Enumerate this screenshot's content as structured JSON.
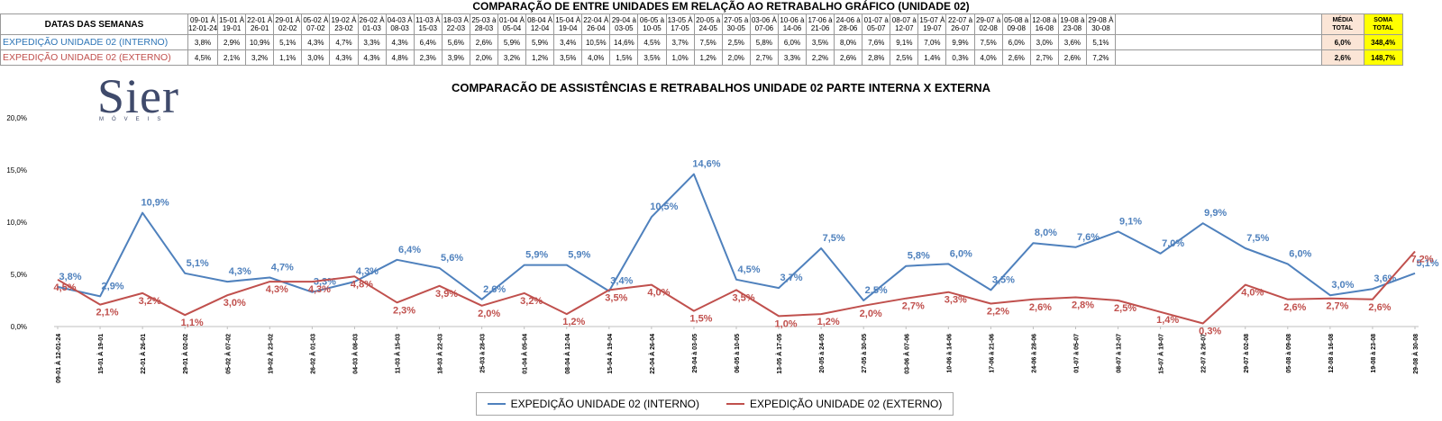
{
  "header": {
    "title": "COMPARAÇÃO DE ENTRE UNIDADES EM RELAÇÃO AO RETRABALHO GRÁFICO (UNIDADE 02)"
  },
  "table": {
    "header_label": "DATAS DAS SEMANAS",
    "weeks": [
      [
        "09-01 À",
        "12-01-24"
      ],
      [
        "15-01 À",
        "19-01"
      ],
      [
        "22-01 À",
        "26-01"
      ],
      [
        "29-01 À",
        "02-02"
      ],
      [
        "05-02 À",
        "07-02"
      ],
      [
        "19-02 À",
        "23-02"
      ],
      [
        "26-02 À",
        "01-03"
      ],
      [
        "04-03 À",
        "08-03"
      ],
      [
        "11-03 À",
        "15-03"
      ],
      [
        "18-03 À",
        "22-03"
      ],
      [
        "25-03 à",
        "28-03"
      ],
      [
        "01-04 À",
        "05-04"
      ],
      [
        "08-04 À",
        "12-04"
      ],
      [
        "15-04 À",
        "19-04"
      ],
      [
        "22-04 À",
        "26-04"
      ],
      [
        "29-04 à",
        "03-05"
      ],
      [
        "06-05 à",
        "10-05"
      ],
      [
        "13-05 À",
        "17-05"
      ],
      [
        "20-05 à",
        "24-05"
      ],
      [
        "27-05 à",
        "30-05"
      ],
      [
        "03-06 À",
        "07-06"
      ],
      [
        "10-06 à",
        "14-06"
      ],
      [
        "17-06 à",
        "21-06"
      ],
      [
        "24-06 à",
        "28-06"
      ],
      [
        "01-07 à",
        "05-07"
      ],
      [
        "08-07 à",
        "12-07"
      ],
      [
        "15-07 À",
        "19-07"
      ],
      [
        "22-07 à",
        "26-07"
      ],
      [
        "29-07 à",
        "02-08"
      ],
      [
        "05-08 à",
        "09-08"
      ],
      [
        "12-08 à",
        "16-08"
      ],
      [
        "19-08 à",
        "23-08"
      ],
      [
        "29-08 À",
        "30-08"
      ]
    ],
    "media_header": [
      "MÉDIA",
      "TOTAL"
    ],
    "soma_header": [
      "SOMA",
      "TOTAL"
    ],
    "rows": [
      {
        "label": "EXPEDIÇÃO UNIDADE 02 (INTERNO)",
        "values": [
          "3,8%",
          "2,9%",
          "10,9%",
          "5,1%",
          "4,3%",
          "4,7%",
          "3,3%",
          "4,3%",
          "6,4%",
          "5,6%",
          "2,6%",
          "5,9%",
          "5,9%",
          "3,4%",
          "10,5%",
          "14,6%",
          "4,5%",
          "3,7%",
          "7,5%",
          "2,5%",
          "5,8%",
          "6,0%",
          "3,5%",
          "8,0%",
          "7,6%",
          "9,1%",
          "7,0%",
          "9,9%",
          "7,5%",
          "6,0%",
          "3,0%",
          "3,6%",
          "5,1%"
        ],
        "media": "6,0%",
        "soma": "348,4%"
      },
      {
        "label": "EXPEDIÇÃO UNIDADE 02 (EXTERNO)",
        "values": [
          "4,5%",
          "2,1%",
          "3,2%",
          "1,1%",
          "3,0%",
          "4,3%",
          "4,3%",
          "4,8%",
          "2,3%",
          "3,9%",
          "2,0%",
          "3,2%",
          "1,2%",
          "3,5%",
          "4,0%",
          "1,5%",
          "3,5%",
          "1,0%",
          "1,2%",
          "2,0%",
          "2,7%",
          "3,3%",
          "2,2%",
          "2,6%",
          "2,8%",
          "2,5%",
          "1,4%",
          "0,3%",
          "4,0%",
          "2,6%",
          "2,7%",
          "2,6%",
          "7,2%"
        ],
        "media": "2,6%",
        "soma": "148,7%"
      }
    ]
  },
  "logo": {
    "text": "Sier",
    "sub": "MÓVEIS"
  },
  "chart_data": {
    "type": "line",
    "title": "COMPARACÃO DE ASSISTÊNCIAS E RETRABALHOS UNIDADE 02 PARTE INTERNA X EXTERNA",
    "categories": [
      "09-01 À 12-01-24",
      "15-01 À 19-01",
      "22-01 À 26-01",
      "29-01 À 02-02",
      "05-02 À 07-02",
      "19-02 À 23-02",
      "26-02 À 01-03",
      "04-03 À 08-03",
      "11-03 À 15-03",
      "18-03 À 22-03",
      "25-03 à 28-03",
      "01-04 À 05-04",
      "08-04 À 12-04",
      "15-04 À 19-04",
      "22-04 À 26-04",
      "29-04 à 03-05",
      "06-05 à 10-05",
      "13-05 À 17-05",
      "20-05 à 24-05",
      "27-05 à 30-05",
      "03-06 À 07-06",
      "10-06 à 14-06",
      "17-06 à 21-06",
      "24-06 à 28-06",
      "01-07 à 05-07",
      "08-07 à 12-07",
      "15-07 À 19-07",
      "22-07 à 26-07",
      "29-07 à 02-08",
      "05-08 à 09-08",
      "12-08 à 16-08",
      "19-08 à 23-08",
      "29-08 À 30-08"
    ],
    "yticks": [
      "0,0%",
      "5,0%",
      "10,0%",
      "15,0%",
      "20,0%"
    ],
    "ylim": [
      0,
      20
    ],
    "series": [
      {
        "name": "EXPEDIÇÃO UNIDADE 02 (INTERNO)",
        "color": "#4f81bd",
        "label_color": "#4f81bd",
        "values": [
          3.8,
          2.9,
          10.9,
          5.1,
          4.3,
          4.7,
          3.3,
          4.3,
          6.4,
          5.6,
          2.6,
          5.9,
          5.9,
          3.4,
          10.5,
          14.6,
          4.5,
          3.7,
          7.5,
          2.5,
          5.8,
          6.0,
          3.5,
          8.0,
          7.6,
          9.1,
          7.0,
          9.9,
          7.5,
          6.0,
          3.0,
          3.6,
          5.1
        ],
        "labels": [
          "3,8%",
          "2,9%",
          "10,9%",
          "5,1%",
          "4,3%",
          "4,7%",
          "3,3%",
          "4,3%",
          "6,4%",
          "5,6%",
          "2,6%",
          "5,9%",
          "5,9%",
          "3,4%",
          "10,5%",
          "14,6%",
          "4,5%",
          "3,7%",
          "7,5%",
          "2,5%",
          "5,8%",
          "6,0%",
          "3,5%",
          "8,0%",
          "7,6%",
          "9,1%",
          "7,0%",
          "9,9%",
          "7,5%",
          "6,0%",
          "3,0%",
          "3,6%",
          "5,1%"
        ]
      },
      {
        "name": "EXPEDIÇÃO UNIDADE 02 (EXTERNO)",
        "color": "#c0504d",
        "label_color": "#c0504d",
        "values": [
          4.5,
          2.1,
          3.2,
          1.1,
          3.0,
          4.3,
          4.3,
          4.8,
          2.3,
          3.9,
          2.0,
          3.2,
          1.2,
          3.5,
          4.0,
          1.5,
          3.5,
          1.0,
          1.2,
          2.0,
          2.7,
          3.3,
          2.2,
          2.6,
          2.8,
          2.5,
          1.4,
          0.3,
          4.0,
          2.6,
          2.7,
          2.6,
          7.2
        ],
        "labels": [
          "4,5%",
          "2,1%",
          "3,2%",
          "1,1%",
          "3,0%",
          "4,3%",
          "4,3%",
          "4,8%",
          "2,3%",
          "3,9%",
          "2,0%",
          "3,2%",
          "1,2%",
          "3,5%",
          "4,0%",
          "1,5%",
          "3,5%",
          "1,0%",
          "1,2%",
          "2,0%",
          "2,7%",
          "3,3%",
          "2,2%",
          "2,6%",
          "2,8%",
          "2,5%",
          "1,4%",
          "0,3%",
          "4,0%",
          "2,6%",
          "2,7%",
          "2,6%",
          "7,2%"
        ]
      }
    ],
    "legend": "bottom",
    "grid": false
  }
}
